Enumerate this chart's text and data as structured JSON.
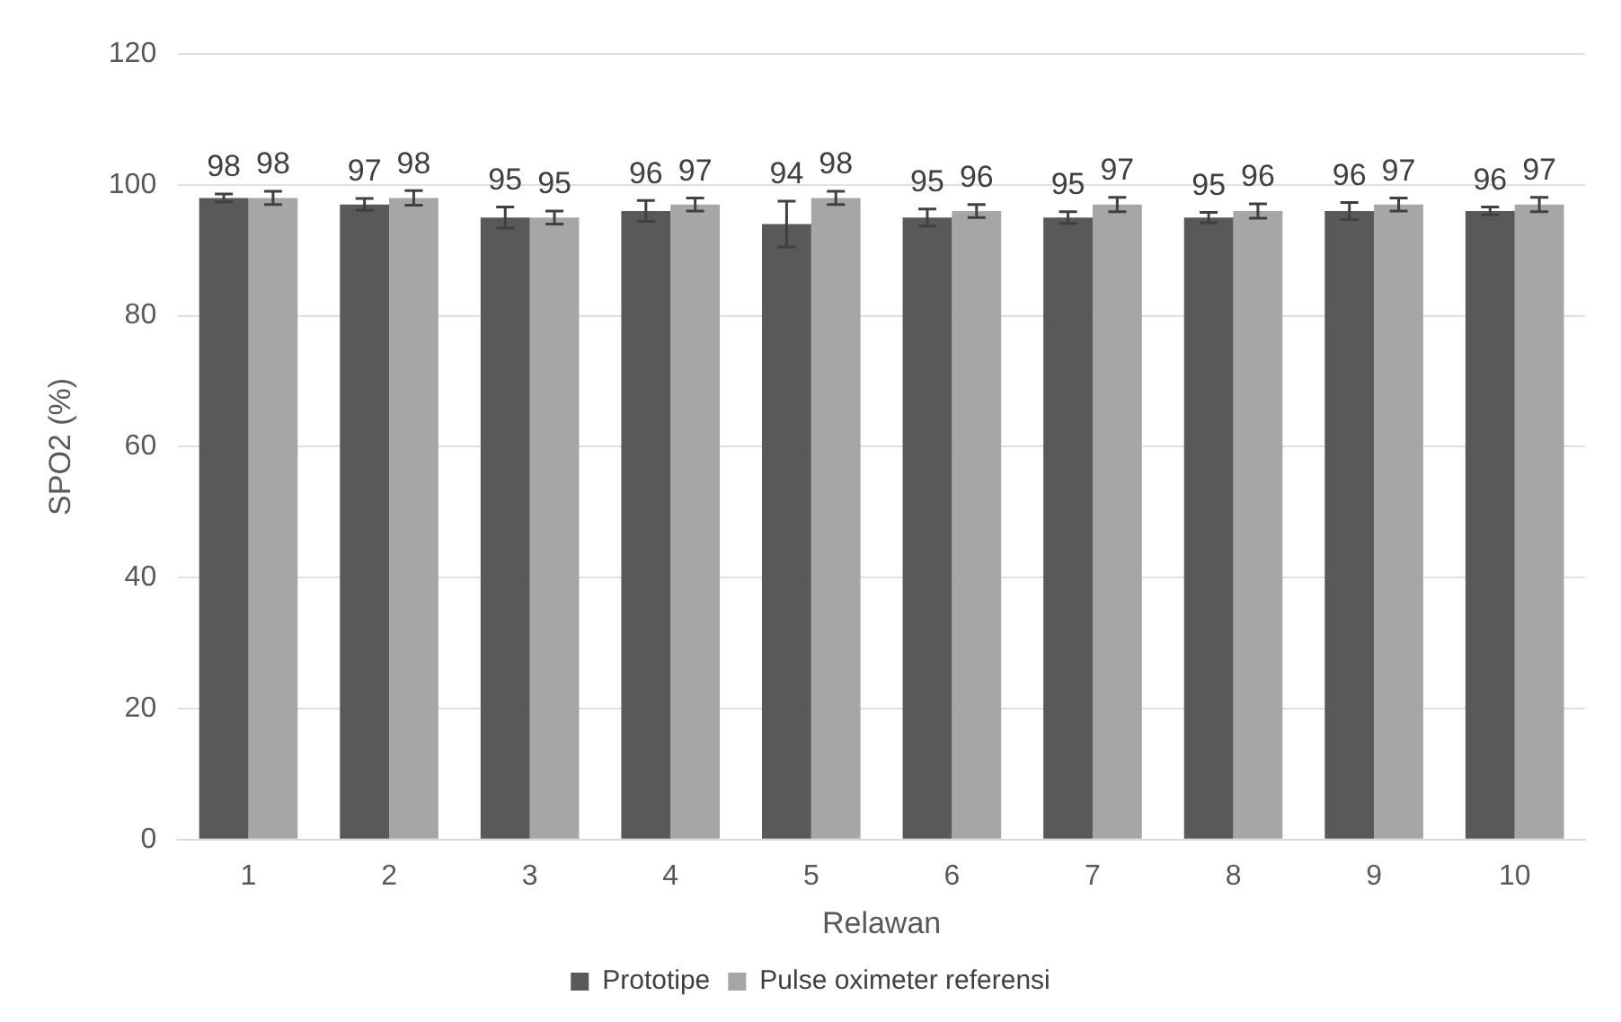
{
  "chart_data": {
    "type": "bar",
    "xlabel": "Relawan",
    "ylabel": "SPO2 (%)",
    "categories": [
      "1",
      "2",
      "3",
      "4",
      "5",
      "6",
      "7",
      "8",
      "9",
      "10"
    ],
    "series": [
      {
        "name": "Prototipe",
        "color": "#595959",
        "values": [
          98,
          97,
          95,
          96,
          94,
          95,
          95,
          95,
          96,
          96
        ],
        "errors": [
          0.6,
          0.9,
          1.6,
          1.6,
          3.5,
          1.3,
          0.9,
          0.8,
          1.3,
          0.6
        ]
      },
      {
        "name": "Pulse oximeter referensi",
        "color": "#a6a6a6",
        "values": [
          98,
          98,
          95,
          97,
          98,
          96,
          97,
          96,
          97,
          97
        ],
        "errors": [
          1.0,
          1.1,
          1.0,
          1.0,
          1.0,
          1.0,
          1.1,
          1.1,
          1.0,
          1.1
        ]
      }
    ],
    "ylim": [
      0,
      120
    ],
    "yticks": [
      0,
      20,
      40,
      60,
      80,
      100,
      120
    ],
    "grid": "y",
    "legend": "bottom",
    "data_labels": true
  }
}
